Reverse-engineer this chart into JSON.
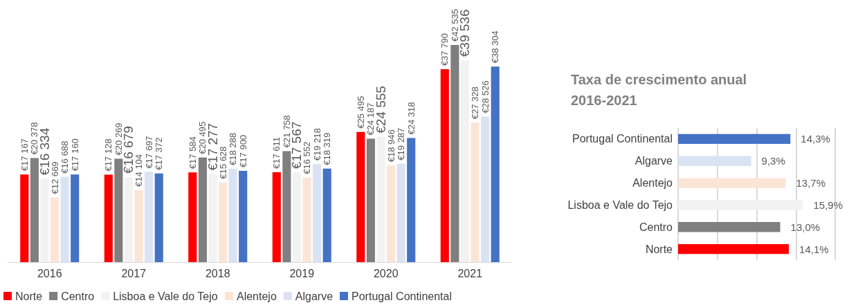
{
  "chart_data": [
    {
      "type": "bar",
      "categories": [
        "2016",
        "2017",
        "2018",
        "2019",
        "2020",
        "2021"
      ],
      "legend": "bottom",
      "grid": false,
      "series": [
        {
          "name": "Norte",
          "color": "#ff0000",
          "values": [
            17167,
            17128,
            17584,
            17611,
            25495,
            37790
          ],
          "value_labels": [
            "€17 167",
            "€17 128",
            "€17 584",
            "€17 611",
            "€25 495",
            "€37 790"
          ]
        },
        {
          "name": "Centro",
          "color": "#7f7f7f",
          "values": [
            20378,
            20269,
            20495,
            21758,
            24187,
            42535
          ],
          "value_labels": [
            "€20 378",
            "€20 269",
            "€20 495",
            "€21 758",
            "€24 187",
            "€42 535"
          ]
        },
        {
          "name": "Lisboa e Vale do Tejo",
          "color": "#f2f2f2",
          "values": [
            16334,
            16679,
            17277,
            17567,
            24555,
            39536
          ],
          "value_labels": [
            "€16 334",
            "€16 679",
            "€17 277",
            "€17 567",
            "€24 555",
            "€39 536"
          ]
        },
        {
          "name": "Alentejo",
          "color": "#fbe5d6",
          "values": [
            12669,
            14104,
            15628,
            16552,
            18946,
            27328
          ],
          "value_labels": [
            "€12 669",
            "€14 104",
            "€15 628",
            "€16 552",
            "€18 946",
            "€27 328"
          ]
        },
        {
          "name": "Algarve",
          "color": "#dae3f3",
          "values": [
            16688,
            17697,
            18288,
            19218,
            19287,
            28526
          ],
          "value_labels": [
            "€16 688",
            "€17 697",
            "€18 288",
            "€19 218",
            "€19 287",
            "€28 526"
          ]
        },
        {
          "name": "Portugal Continental",
          "color": "#4472c4",
          "values": [
            17160,
            17372,
            17900,
            18319,
            24318,
            38304
          ],
          "value_labels": [
            "€17 160",
            "€17 372",
            "€17 900",
            "€18 319",
            "€24 318",
            "€38 304"
          ]
        }
      ]
    },
    {
      "type": "bar",
      "orientation": "horizontal",
      "title": "Taxa de crescimento anual\n2016-2021",
      "categories": [
        "Portugal Continental",
        "Algarve",
        "Alentejo",
        "Lisboa e Vale do Tejo",
        "Centro",
        "Norte"
      ],
      "values": [
        14.3,
        9.3,
        13.7,
        15.9,
        13.0,
        14.1
      ],
      "colors": [
        "#4472c4",
        "#dae3f3",
        "#fbe5d6",
        "#f2f2f2",
        "#7f7f7f",
        "#ff0000"
      ],
      "value_labels": [
        "14,3%",
        "9,3%",
        "13,7%",
        "15,9%",
        "13,0%",
        "14,1%"
      ],
      "xlim": [
        0,
        20
      ],
      "xticks": [
        {
          "value": 0,
          "label": null
        },
        {
          "value": 5,
          "label": null
        },
        {
          "value": 10,
          "label": null
        },
        {
          "value": 15,
          "label": null
        },
        {
          "value": 20,
          "label": null
        }
      ],
      "grid": "x",
      "tick_labels": "y",
      "legend": false
    }
  ]
}
